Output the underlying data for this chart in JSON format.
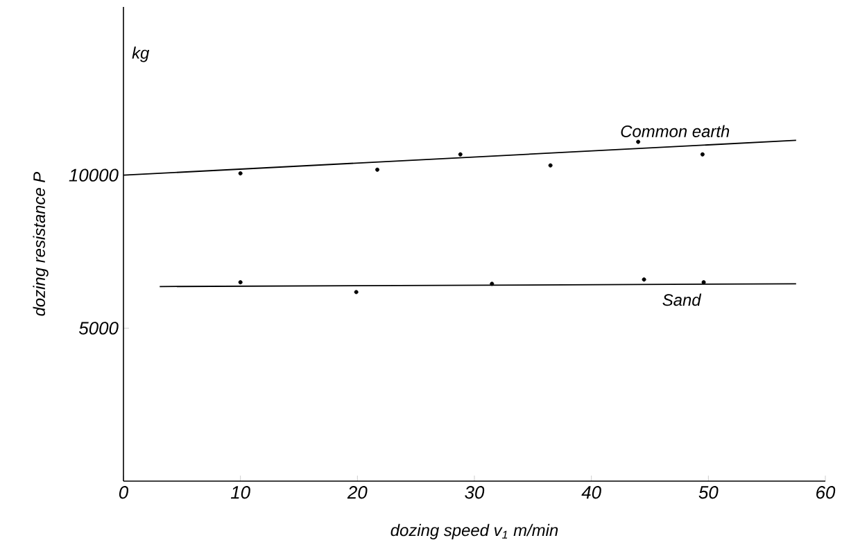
{
  "chart_data": {
    "type": "scatter",
    "xlabel": "dozing  speed  *v*$_{1}$  m/min",
    "ylabel": "dozing  resistance  *P*",
    "annotations": [
      "kg"
    ],
    "xlim": [
      0,
      60
    ],
    "xticks": [
      0,
      10,
      20,
      30,
      40,
      50,
      60
    ],
    "ylim": [
      0,
      15500
    ],
    "yticks": [
      5000,
      10000
    ],
    "grid": false,
    "series": [
      {
        "marker": "circle",
        "color": "#000000",
        "x": [
          10,
          21.7,
          28.8,
          36.5,
          44,
          49.5
        ],
        "values": [
          10060,
          10180,
          10680,
          10320,
          11090,
          10680
        ]
      },
      {
        "type": "line",
        "marker": "none",
        "name": "Common earth",
        "color": "#000000",
        "x": [
          0,
          57.5
        ],
        "values": [
          10000,
          11140
        ]
      },
      {
        "marker": "circle",
        "color": "#000000",
        "x": [
          10,
          19.9,
          31.5,
          44.5,
          49.6
        ],
        "values": [
          6500,
          6180,
          6450,
          6590,
          6500
        ]
      },
      {
        "type": "line",
        "marker": "none",
        "name": "Sand",
        "color": "#000000",
        "x": [
          3.1,
          57.5
        ],
        "values": [
          6360,
          6450
        ]
      }
    ]
  }
}
